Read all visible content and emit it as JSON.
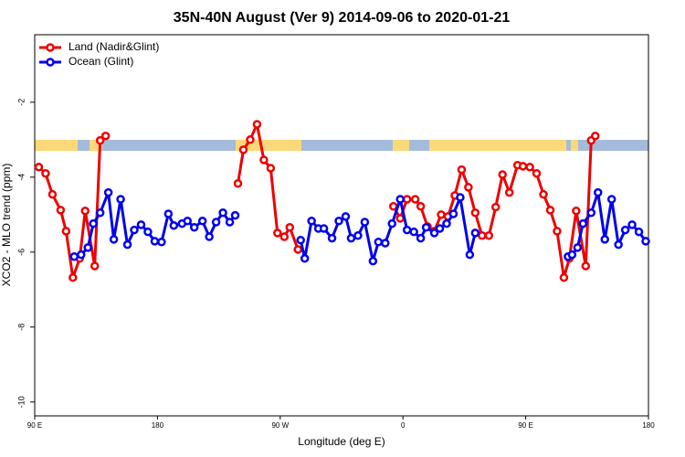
{
  "chart_data": {
    "type": "line",
    "title": "35N-40N August (Ver 9)   2014-09-06 to 2020-01-21",
    "x_label": "Longitude (deg E)",
    "y_label": "XCO2 - MLO trend (ppm)",
    "xlim": [
      90,
      540
    ],
    "xticks": [
      {
        "value": 90,
        "label": "90 E"
      },
      180,
      {
        "value": 270,
        "label": "90 W"
      },
      {
        "value": 360,
        "label": "0"
      },
      {
        "value": 450,
        "label": "90 E"
      },
      {
        "value": 540,
        "label": "180"
      }
    ],
    "ylim": [
      -10.37,
      -0.2
    ],
    "yticks": [
      -2,
      -4,
      -6,
      -8,
      -10
    ],
    "legend": "top-left",
    "series": [
      {
        "name": "Land (Nadir&Glint)",
        "color": "#ee0000",
        "x": [
          93,
          98,
          103,
          109,
          113,
          118,
          123,
          127,
          134,
          138,
          142,
          null,
          239,
          243,
          248,
          253,
          258,
          263,
          268,
          273,
          277,
          283,
          null,
          353,
          358,
          363,
          369,
          373,
          378,
          383,
          388,
          393,
          398,
          403,
          408,
          413,
          418,
          423,
          428,
          433,
          438,
          444,
          448,
          453,
          458,
          463,
          468,
          473,
          478,
          482,
          487,
          494,
          498,
          501
        ],
        "values": [
          -3.73,
          -3.9,
          -4.46,
          -4.88,
          -5.44,
          -6.68,
          -6.17,
          -4.9,
          -6.37,
          -3.02,
          -2.9,
          null,
          -4.17,
          -3.27,
          -3.0,
          -2.59,
          -3.54,
          -3.76,
          -5.49,
          -5.59,
          -5.34,
          -5.93,
          null,
          -4.78,
          -5.1,
          -4.59,
          -4.59,
          -4.78,
          -5.32,
          -5.44,
          -5.0,
          -5.05,
          -4.49,
          -3.8,
          -4.27,
          -4.95,
          -5.56,
          -5.56,
          -4.8,
          -3.93,
          -4.41,
          -3.68,
          -3.71,
          -3.73,
          -3.9,
          -4.46,
          -4.88,
          -5.44,
          -6.68,
          -6.17,
          -4.9,
          -6.37,
          -3.02,
          -2.9
        ]
      },
      {
        "name": "Ocean (Glint)",
        "color": "#0000ee",
        "x": [
          119,
          124,
          129,
          133,
          138,
          144,
          148,
          153,
          158,
          163,
          168,
          173,
          178,
          183,
          188,
          192,
          198,
          202,
          207,
          213,
          218,
          223,
          228,
          233,
          237,
          null,
          285,
          288,
          293,
          298,
          302,
          308,
          313,
          318,
          322,
          327,
          332,
          338,
          342,
          347,
          352,
          358,
          363,
          368,
          373,
          377,
          383,
          387,
          392,
          397,
          402,
          409,
          413,
          null,
          481,
          484,
          488,
          492,
          498,
          503,
          508,
          513,
          518,
          523,
          528,
          533,
          538
        ],
        "values": [
          -6.12,
          -6.07,
          -5.88,
          -5.24,
          -4.95,
          -4.41,
          -5.66,
          -4.59,
          -5.8,
          -5.41,
          -5.27,
          -5.46,
          -5.71,
          -5.73,
          -4.98,
          -5.29,
          -5.24,
          -5.17,
          -5.34,
          -5.17,
          -5.59,
          -5.2,
          -4.95,
          -5.2,
          -5.02,
          null,
          -5.68,
          -6.17,
          -5.17,
          -5.37,
          -5.37,
          -5.63,
          -5.17,
          -5.05,
          -5.63,
          -5.56,
          -5.2,
          -6.24,
          -5.73,
          -5.76,
          -5.24,
          -4.59,
          -5.41,
          -5.46,
          -5.63,
          -5.34,
          -5.49,
          -5.37,
          -5.24,
          -4.98,
          -4.54,
          -6.07,
          -5.49,
          null,
          -6.12,
          -6.07,
          -5.88,
          -5.24,
          -4.95,
          -4.41,
          -5.66,
          -4.59,
          -5.8,
          -5.41,
          -5.27,
          -5.46,
          -5.71
        ]
      }
    ]
  }
}
